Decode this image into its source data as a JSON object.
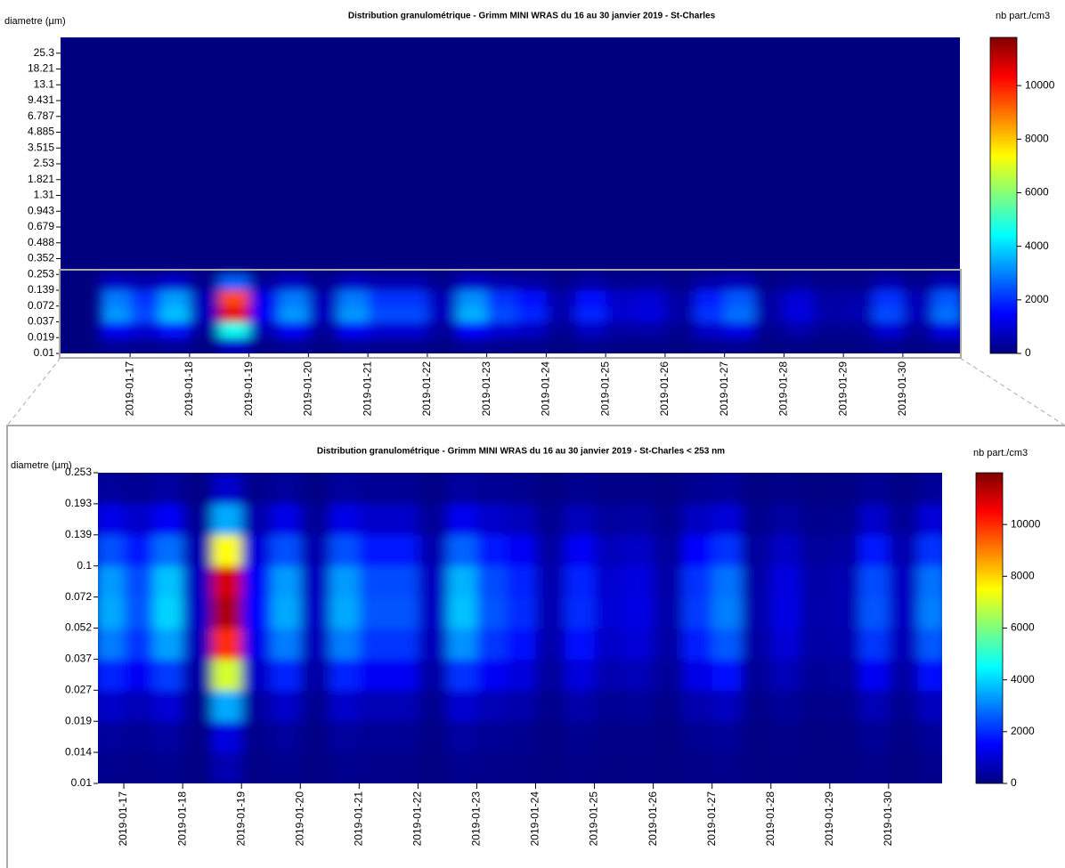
{
  "chart_data": [
    {
      "type": "heatmap",
      "title": "Distribution granulométrique - Grimm MINI WRAS du 16 au 30 janvier 2019 - St-Charles",
      "ylabel": "diametre (µm)",
      "zlabel": "nb part./cm3",
      "x": [
        16.75,
        17.25,
        17.75,
        18.25,
        18.75,
        19.25,
        19.75,
        20.25,
        20.75,
        21.25,
        21.75,
        22.25,
        22.75,
        23.25,
        23.75,
        24.25,
        24.75,
        25.25,
        25.75,
        26.25,
        26.75,
        27.25,
        27.75,
        28.25,
        28.75,
        29.25,
        29.75,
        30.25,
        30.75
      ],
      "xlim": [
        15.83,
        30.96
      ],
      "xticks": [
        {
          "value": 17,
          "label": "2019-01-17"
        },
        {
          "value": 18,
          "label": "2019-01-18"
        },
        {
          "value": 19,
          "label": "2019-01-19"
        },
        {
          "value": 20,
          "label": "2019-01-20"
        },
        {
          "value": 21,
          "label": "2019-01-21"
        },
        {
          "value": 22,
          "label": "2019-01-22"
        },
        {
          "value": 23,
          "label": "2019-01-23"
        },
        {
          "value": 24,
          "label": "2019-01-24"
        },
        {
          "value": 25,
          "label": "2019-01-25"
        },
        {
          "value": 26,
          "label": "2019-01-26"
        },
        {
          "value": 27,
          "label": "2019-01-27"
        },
        {
          "value": 28,
          "label": "2019-01-28"
        },
        {
          "value": 29,
          "label": "2019-01-29"
        },
        {
          "value": 30,
          "label": "2019-01-30"
        }
      ],
      "ylim": [
        0.01,
        35
      ],
      "yticks": [
        0.01,
        0.019,
        0.037,
        0.072,
        0.139,
        0.253,
        0.352,
        0.488,
        0.679,
        0.943,
        1.31,
        1.821,
        2.53,
        3.515,
        4.885,
        6.787,
        9.431,
        13.1,
        18.21,
        25.3
      ],
      "ybins": [
        0.01,
        0.019,
        0.037,
        0.072,
        0.139,
        0.253,
        35
      ],
      "z": [
        [
          260,
          1400,
          3240,
          2890,
          790,
          0
        ],
        [
          190,
          1000,
          2310,
          2060,
          560,
          0
        ],
        [
          300,
          1600,
          3700,
          3300,
          900,
          0
        ],
        [
          60,
          320,
          740,
          660,
          180,
          0
        ],
        [
          860,
          4600,
          10640,
          9490,
          2590,
          0
        ],
        [
          110,
          600,
          1390,
          1240,
          340,
          0
        ],
        [
          260,
          1400,
          3240,
          2890,
          790,
          0
        ],
        [
          60,
          320,
          740,
          660,
          180,
          0
        ],
        [
          260,
          1400,
          3240,
          2890,
          790,
          0
        ],
        [
          190,
          1000,
          2310,
          2060,
          560,
          0
        ],
        [
          190,
          1000,
          2310,
          2060,
          560,
          0
        ],
        [
          60,
          320,
          740,
          660,
          180,
          0
        ],
        [
          290,
          1520,
          3520,
          3140,
          860,
          0
        ],
        [
          190,
          1000,
          2310,
          2060,
          560,
          0
        ],
        [
          150,
          800,
          1850,
          1650,
          450,
          0
        ],
        [
          50,
          240,
          560,
          500,
          140,
          0
        ],
        [
          150,
          800,
          1850,
          1650,
          450,
          0
        ],
        [
          80,
          400,
          930,
          830,
          230,
          0
        ],
        [
          90,
          480,
          1110,
          990,
          270,
          0
        ],
        [
          40,
          200,
          460,
          410,
          110,
          0
        ],
        [
          170,
          880,
          2040,
          1820,
          500,
          0
        ],
        [
          230,
          1200,
          2780,
          2480,
          680,
          0
        ],
        [
          40,
          200,
          460,
          410,
          110,
          0
        ],
        [
          90,
          480,
          1110,
          990,
          270,
          0
        ],
        [
          40,
          200,
          460,
          410,
          110,
          0
        ],
        [
          50,
          240,
          560,
          500,
          140,
          0
        ],
        [
          190,
          1000,
          2310,
          2060,
          560,
          0
        ],
        [
          60,
          320,
          740,
          660,
          180,
          0
        ],
        [
          230,
          1200,
          2780,
          2480,
          680,
          0
        ]
      ],
      "zlim": [
        0,
        11800
      ],
      "zticks": [
        0,
        2000,
        4000,
        6000,
        8000,
        10000
      ],
      "colormap": [
        "#00007f",
        "#0000ff",
        "#007fff",
        "#00ffff",
        "#7fff7f",
        "#ffff00",
        "#ff7f00",
        "#ff0000",
        "#7f0000"
      ]
    },
    {
      "type": "heatmap",
      "title": "Distribution granulométrique - Grimm MINI WRAS du 16 au 30 janvier 2019 - St-Charles < 253 nm",
      "ylabel": "diametre (µm)",
      "zlabel": "nb part./cm3",
      "x": [
        16.75,
        17.25,
        17.75,
        18.25,
        18.75,
        19.25,
        19.75,
        20.25,
        20.75,
        21.25,
        21.75,
        22.25,
        22.75,
        23.25,
        23.75,
        24.25,
        24.75,
        25.25,
        25.75,
        26.25,
        26.75,
        27.25,
        27.75,
        28.25,
        28.75,
        29.25,
        29.75,
        30.25,
        30.75
      ],
      "xlim": [
        16.56,
        30.91
      ],
      "xticks": [
        {
          "value": 17,
          "label": "2019-01-17"
        },
        {
          "value": 18,
          "label": "2019-01-18"
        },
        {
          "value": 19,
          "label": "2019-01-19"
        },
        {
          "value": 20,
          "label": "2019-01-20"
        },
        {
          "value": 21,
          "label": "2019-01-21"
        },
        {
          "value": 22,
          "label": "2019-01-22"
        },
        {
          "value": 23,
          "label": "2019-01-23"
        },
        {
          "value": 24,
          "label": "2019-01-24"
        },
        {
          "value": 25,
          "label": "2019-01-25"
        },
        {
          "value": 26,
          "label": "2019-01-26"
        },
        {
          "value": 27,
          "label": "2019-01-27"
        },
        {
          "value": 28,
          "label": "2019-01-28"
        },
        {
          "value": 29,
          "label": "2019-01-29"
        },
        {
          "value": 30,
          "label": "2019-01-30"
        }
      ],
      "ylim": [
        0.01,
        0.253
      ],
      "yticks": [
        0.01,
        0.014,
        0.019,
        0.027,
        0.037,
        0.052,
        0.072,
        0.1,
        0.139,
        0.193,
        0.253
      ],
      "ybins": [
        0.01,
        0.014,
        0.019,
        0.027,
        0.037,
        0.052,
        0.072,
        0.1,
        0.139,
        0.193,
        0.253
      ],
      "z": [
        [
          180,
          350,
          880,
          1930,
          2980,
          3500,
          3330,
          2450,
          1230,
          350
        ],
        [
          130,
          250,
          630,
          1380,
          2130,
          2500,
          2380,
          1750,
          880,
          250
        ],
        [
          200,
          400,
          1000,
          2200,
          3400,
          4000,
          3800,
          2800,
          1400,
          400
        ],
        [
          40,
          80,
          200,
          440,
          680,
          800,
          760,
          560,
          280,
          80
        ],
        [
          580,
          1150,
          3500,
          7000,
          10000,
          11500,
          11000,
          7500,
          3500,
          900
        ],
        [
          80,
          150,
          380,
          830,
          1280,
          1500,
          1430,
          1050,
          530,
          150
        ],
        [
          180,
          350,
          880,
          1930,
          2980,
          3500,
          3330,
          2450,
          1230,
          350
        ],
        [
          40,
          80,
          200,
          440,
          680,
          800,
          760,
          560,
          280,
          80
        ],
        [
          180,
          350,
          880,
          1930,
          2980,
          3500,
          3330,
          2450,
          1230,
          350
        ],
        [
          130,
          250,
          630,
          1380,
          2130,
          2500,
          2380,
          1750,
          880,
          250
        ],
        [
          130,
          250,
          630,
          1380,
          2130,
          2500,
          2380,
          1750,
          880,
          250
        ],
        [
          40,
          80,
          200,
          440,
          680,
          800,
          760,
          560,
          280,
          80
        ],
        [
          190,
          380,
          950,
          2090,
          3230,
          3800,
          3610,
          2660,
          1330,
          380
        ],
        [
          130,
          250,
          630,
          1380,
          2130,
          2500,
          2380,
          1750,
          880,
          250
        ],
        [
          100,
          200,
          500,
          1100,
          1700,
          2000,
          1900,
          1400,
          700,
          200
        ],
        [
          30,
          60,
          150,
          330,
          510,
          600,
          570,
          420,
          210,
          60
        ],
        [
          100,
          200,
          500,
          1100,
          1700,
          2000,
          1900,
          1400,
          700,
          200
        ],
        [
          50,
          100,
          250,
          550,
          850,
          1000,
          950,
          700,
          350,
          100
        ],
        [
          60,
          120,
          300,
          660,
          1020,
          1200,
          1140,
          840,
          420,
          120
        ],
        [
          30,
          50,
          130,
          280,
          430,
          500,
          480,
          350,
          180,
          50
        ],
        [
          110,
          220,
          550,
          1210,
          1870,
          2200,
          2090,
          1540,
          770,
          220
        ],
        [
          150,
          300,
          750,
          1650,
          2550,
          3000,
          2850,
          2100,
          1050,
          300
        ],
        [
          30,
          50,
          130,
          280,
          430,
          500,
          480,
          350,
          180,
          50
        ],
        [
          60,
          120,
          300,
          660,
          1020,
          1200,
          1140,
          840,
          420,
          120
        ],
        [
          30,
          50,
          130,
          280,
          430,
          500,
          480,
          350,
          180,
          50
        ],
        [
          30,
          60,
          150,
          330,
          510,
          600,
          570,
          420,
          210,
          60
        ],
        [
          130,
          250,
          630,
          1380,
          2130,
          2500,
          2380,
          1750,
          880,
          250
        ],
        [
          40,
          80,
          200,
          440,
          680,
          800,
          760,
          560,
          280,
          80
        ],
        [
          150,
          300,
          750,
          1650,
          2550,
          3000,
          2850,
          2100,
          1050,
          300
        ]
      ],
      "zlim": [
        0,
        12000
      ],
      "zticks": [
        0,
        2000,
        4000,
        6000,
        8000,
        10000
      ],
      "colormap": [
        "#00007f",
        "#0000ff",
        "#007fff",
        "#00ffff",
        "#7fff7f",
        "#ffff00",
        "#ff7f00",
        "#ff0000",
        "#7f0000"
      ]
    }
  ]
}
